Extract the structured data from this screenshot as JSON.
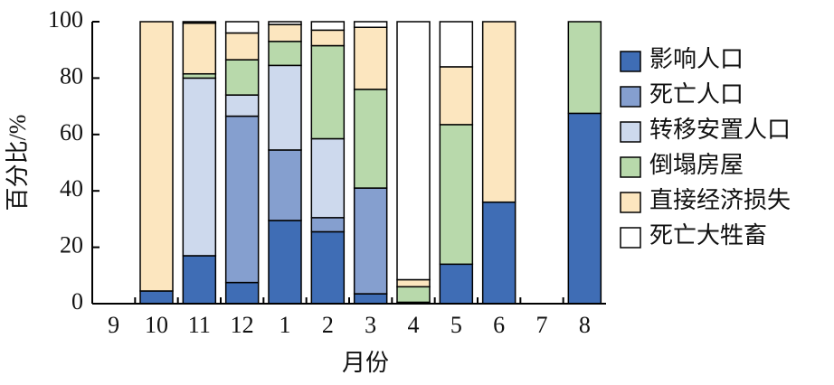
{
  "chart_data": {
    "type": "stacked_bar",
    "x_label": "月份",
    "y_label": "百分比/%",
    "categories": [
      "9",
      "10",
      "11",
      "12",
      "1",
      "2",
      "3",
      "4",
      "5",
      "6",
      "7",
      "8"
    ],
    "series": [
      {
        "name": "影响人口",
        "color": "#3f6db5",
        "values": [
          0,
          4.5,
          17,
          7.5,
          29.5,
          25.5,
          3.5,
          0.5,
          14,
          36,
          0,
          67.5
        ]
      },
      {
        "name": "死亡人口",
        "color": "#859fcf",
        "values": [
          0,
          0,
          0,
          59,
          25,
          5,
          37.5,
          0,
          0,
          0,
          0,
          0
        ]
      },
      {
        "name": "转移安置人口",
        "color": "#cdd9ed",
        "values": [
          0,
          0,
          63,
          7.5,
          30,
          28,
          0,
          0,
          0,
          0,
          0,
          0
        ]
      },
      {
        "name": "倒塌房屋",
        "color": "#b8d9ab",
        "values": [
          0,
          0,
          1.5,
          12.5,
          8.5,
          33,
          35,
          5.5,
          49.5,
          0,
          0,
          32.5
        ]
      },
      {
        "name": "直接经济损失",
        "color": "#fce6bf",
        "values": [
          0,
          95.5,
          18,
          9.5,
          6,
          5.5,
          22,
          2.5,
          20.5,
          64,
          0,
          0
        ]
      },
      {
        "name": "死亡大牲畜",
        "color": "#ffffff",
        "values": [
          0,
          0,
          0.5,
          4,
          1,
          3,
          2,
          91.5,
          16,
          0,
          0,
          0
        ]
      }
    ],
    "ylim": [
      0,
      100
    ],
    "yticks": [
      0,
      20,
      40,
      60,
      80,
      100
    ]
  }
}
